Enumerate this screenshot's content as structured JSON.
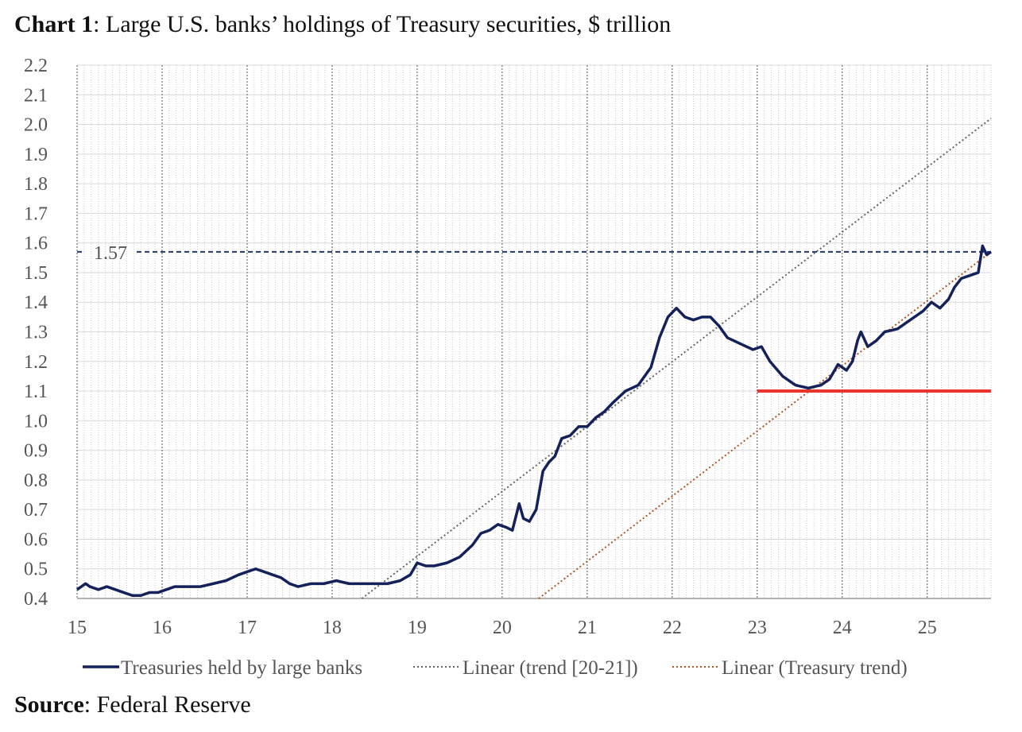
{
  "title": {
    "bold": "Chart 1",
    "rest": ": Large U.S. banks’ holdings of Treasury securities, $ trillion"
  },
  "source": {
    "bold": "Source",
    "rest": ": Federal Reserve"
  },
  "chart_data": {
    "type": "line",
    "title": "Chart 1: Large U.S. banks’ holdings of Treasury securities, $ trillion",
    "xlabel": "",
    "ylabel": "",
    "xlim": [
      15,
      25.75
    ],
    "ylim": [
      0.4,
      2.2
    ],
    "x_ticks": [
      "15",
      "16",
      "17",
      "18",
      "19",
      "20",
      "21",
      "22",
      "23",
      "24",
      "25"
    ],
    "y_ticks": [
      "0.4",
      "0.5",
      "0.6",
      "0.7",
      "0.8",
      "0.9",
      "1.0",
      "1.1",
      "1.2",
      "1.3",
      "1.4",
      "1.5",
      "1.6",
      "1.7",
      "1.8",
      "1.9",
      "2.0",
      "2.1",
      "2.2"
    ],
    "grid": true,
    "legend_position": "bottom",
    "reference_line": {
      "y": 1.57,
      "label": "1.57",
      "color": "#1f3864"
    },
    "threshold_line": {
      "y": 1.1,
      "x_start": 23,
      "x_end": 25.75,
      "color": "#e8342c"
    },
    "series": [
      {
        "name": "Treasuries held by large banks",
        "color": "#14215a",
        "x": [
          15.0,
          15.05,
          15.1,
          15.15,
          15.25,
          15.35,
          15.45,
          15.55,
          15.65,
          15.75,
          15.85,
          15.95,
          16.05,
          16.15,
          16.3,
          16.45,
          16.6,
          16.75,
          16.9,
          17.0,
          17.1,
          17.2,
          17.3,
          17.4,
          17.5,
          17.6,
          17.75,
          17.9,
          18.05,
          18.2,
          18.35,
          18.5,
          18.65,
          18.8,
          18.92,
          19.0,
          19.1,
          19.2,
          19.35,
          19.5,
          19.65,
          19.75,
          19.85,
          19.95,
          20.05,
          20.12,
          20.2,
          20.25,
          20.32,
          20.4,
          20.48,
          20.55,
          20.62,
          20.7,
          20.8,
          20.9,
          21.0,
          21.1,
          21.2,
          21.3,
          21.45,
          21.6,
          21.75,
          21.85,
          21.95,
          22.05,
          22.15,
          22.25,
          22.35,
          22.45,
          22.55,
          22.65,
          22.8,
          22.95,
          23.05,
          23.15,
          23.3,
          23.45,
          23.6,
          23.75,
          23.85,
          23.95,
          24.05,
          24.12,
          24.18,
          24.22,
          24.3,
          24.4,
          24.5,
          24.65,
          24.8,
          24.95,
          25.05,
          25.15,
          25.25,
          25.32,
          25.4,
          25.5,
          25.6,
          25.65,
          25.7,
          25.75
        ],
        "values": [
          0.43,
          0.44,
          0.45,
          0.44,
          0.43,
          0.44,
          0.43,
          0.42,
          0.41,
          0.41,
          0.42,
          0.42,
          0.43,
          0.44,
          0.44,
          0.44,
          0.45,
          0.46,
          0.48,
          0.49,
          0.5,
          0.49,
          0.48,
          0.47,
          0.45,
          0.44,
          0.45,
          0.45,
          0.46,
          0.45,
          0.45,
          0.45,
          0.45,
          0.46,
          0.48,
          0.52,
          0.51,
          0.51,
          0.52,
          0.54,
          0.58,
          0.62,
          0.63,
          0.65,
          0.64,
          0.63,
          0.72,
          0.67,
          0.66,
          0.7,
          0.83,
          0.86,
          0.88,
          0.94,
          0.95,
          0.98,
          0.98,
          1.01,
          1.03,
          1.06,
          1.1,
          1.12,
          1.18,
          1.28,
          1.35,
          1.38,
          1.35,
          1.34,
          1.35,
          1.35,
          1.32,
          1.28,
          1.26,
          1.24,
          1.25,
          1.2,
          1.15,
          1.12,
          1.11,
          1.12,
          1.14,
          1.19,
          1.17,
          1.2,
          1.27,
          1.3,
          1.25,
          1.27,
          1.3,
          1.31,
          1.34,
          1.37,
          1.4,
          1.38,
          1.41,
          1.45,
          1.48,
          1.49,
          1.5,
          1.59,
          1.56,
          1.57
        ]
      },
      {
        "name": "Linear (trend [20-21])",
        "color": "#666666",
        "style": "dotted",
        "x": [
          18.35,
          25.75
        ],
        "values": [
          0.4,
          2.02
        ]
      },
      {
        "name": "Linear (Treasury trend)",
        "color": "#b5531f",
        "style": "dotted",
        "x": [
          20.43,
          25.75
        ],
        "values": [
          0.4,
          1.57
        ]
      }
    ]
  }
}
